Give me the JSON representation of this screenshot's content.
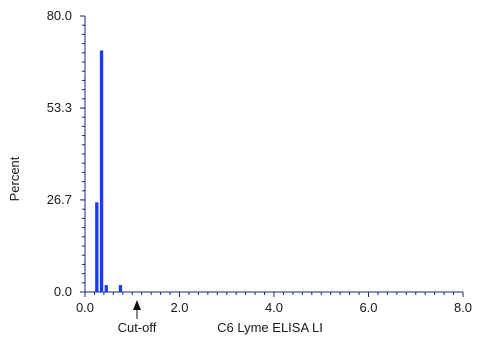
{
  "chart_data": {
    "type": "bar",
    "title": "",
    "xlabel": "C6 Lyme ELISA LI",
    "ylabel": "Percent",
    "xlim": [
      0.0,
      8.0
    ],
    "ylim": [
      0.0,
      80.0
    ],
    "x_ticks": [
      "0.0",
      "2.0",
      "4.0",
      "6.0",
      "8.0"
    ],
    "y_ticks": [
      "0.0",
      "26.7",
      "53.3",
      "80.0"
    ],
    "bars": [
      {
        "x": 0.25,
        "value": 26.0
      },
      {
        "x": 0.35,
        "value": 70.0
      },
      {
        "x": 0.45,
        "value": 2.0
      },
      {
        "x": 0.75,
        "value": 2.0
      }
    ],
    "bar_width": 0.07,
    "bar_color": "#1a3be8",
    "axis_color": "#1a237e",
    "annotations": [
      {
        "label": "Cut-off",
        "x": 1.1
      }
    ],
    "grid": false
  }
}
